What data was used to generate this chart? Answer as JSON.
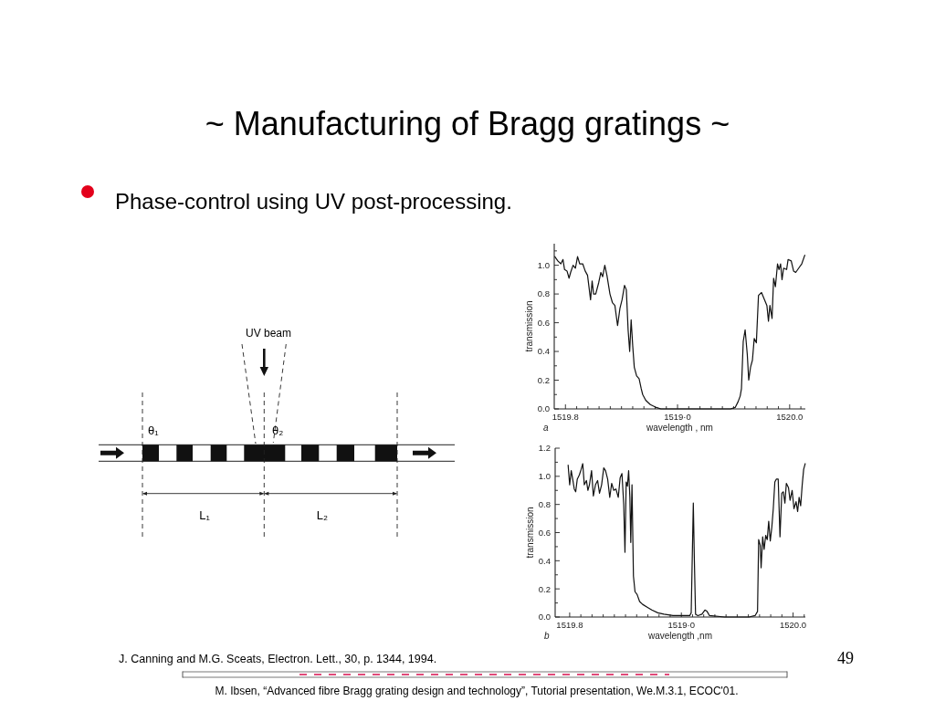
{
  "chart_data": [
    {
      "type": "other",
      "title": "~ Manufacturing of Bragg gratings ~",
      "subtitle": "Phase-control using UV post-processing.",
      "annotations": [
        "UV beam",
        "θ₁",
        "θ₂",
        "L₁",
        "L₂",
        "J. Canning and M.G. Sceats, Electron. Lett., 30, p. 1344, 1994.",
        "49",
        "M. Ibsen, “Advanced fibre Bragg grating design and technology”, Tutorial presentation, We.M.3.1, ECOC'01."
      ]
    },
    {
      "type": "line",
      "color": "#111111",
      "xlabel": "wavelength , nm",
      "ylabel": "transmission",
      "annotations": [
        "a"
      ],
      "xlim": [
        1519.79,
        1520.014
      ],
      "ylim": [
        0,
        1.15
      ],
      "xticks": [
        {
          "value": 1519.8,
          "label": "1519.8"
        },
        {
          "value": 1519.81,
          "label": null
        },
        {
          "value": 1519.82,
          "label": null
        },
        {
          "value": 1519.83,
          "label": null
        },
        {
          "value": 1519.84,
          "label": null
        },
        {
          "value": 1519.85,
          "label": null
        },
        {
          "value": 1519.86,
          "label": null
        },
        {
          "value": 1519.87,
          "label": null
        },
        {
          "value": 1519.88,
          "label": null
        },
        {
          "value": 1519.89,
          "label": null
        },
        {
          "value": 1519.9,
          "label": "1519·0"
        },
        {
          "value": 1519.91,
          "label": null
        },
        {
          "value": 1519.92,
          "label": null
        },
        {
          "value": 1519.93,
          "label": null
        },
        {
          "value": 1519.94,
          "label": null
        },
        {
          "value": 1519.95,
          "label": null
        },
        {
          "value": 1519.96,
          "label": null
        },
        {
          "value": 1519.97,
          "label": null
        },
        {
          "value": 1519.98,
          "label": null
        },
        {
          "value": 1519.99,
          "label": null
        },
        {
          "value": 1520.0,
          "label": "1520.0"
        },
        {
          "value": 1520.01,
          "label": null
        }
      ],
      "yticks": [
        {
          "value": 0,
          "label": "0.0"
        },
        {
          "value": 0.1,
          "label": null
        },
        {
          "value": 0.2,
          "label": "0.2"
        },
        {
          "value": 0.3,
          "label": null
        },
        {
          "value": 0.4,
          "label": "0.4"
        },
        {
          "value": 0.5,
          "label": null
        },
        {
          "value": 0.6,
          "label": "0.6"
        },
        {
          "value": 0.7,
          "label": null
        },
        {
          "value": 0.8,
          "label": "0.8"
        },
        {
          "value": 0.9,
          "label": null
        },
        {
          "value": 1.0,
          "label": "1.0"
        },
        {
          "value": 1.1,
          "label": null
        }
      ],
      "x": [
        1519.7905,
        1519.7932,
        1519.7959,
        1519.7978,
        1519.7992,
        1519.8014,
        1519.8032,
        1519.8046,
        1519.8068,
        1519.8089,
        1519.8108,
        1519.8127,
        1519.8154,
        1519.8176,
        1519.8197,
        1519.8224,
        1519.8238,
        1519.8251,
        1519.827,
        1519.8297,
        1519.8316,
        1519.8332,
        1519.8351,
        1519.837,
        1519.8397,
        1519.8419,
        1519.8441,
        1519.8465,
        1519.8486,
        1519.8505,
        1519.8527,
        1519.8543,
        1519.8559,
        1519.8573,
        1519.8586,
        1519.86,
        1519.8614,
        1519.8635,
        1519.8657,
        1519.8676,
        1519.8689,
        1519.8716,
        1519.8757,
        1519.8811,
        1519.8851,
        1519.9473,
        1519.9514,
        1519.954,
        1519.9559,
        1519.957,
        1519.9586,
        1519.9603,
        1519.9622,
        1519.9635,
        1519.9651,
        1519.9668,
        1519.9684,
        1519.9703,
        1519.9722,
        1519.9749,
        1519.977,
        1519.9797,
        1519.9811,
        1519.9824,
        1519.9843,
        1519.9857,
        1519.9873,
        1519.9892,
        1519.9905,
        1519.9919,
        1519.9932,
        1519.9946,
        1519.9973,
        1519.9986,
        1520.0014,
        1520.0035,
        1520.0054,
        1520.0081,
        1520.0108,
        1520.0135
      ],
      "values": [
        1.06,
        1.03,
        1.01,
        1.04,
        0.97,
        0.96,
        0.91,
        0.95,
        1.0,
        0.98,
        1.06,
        1.01,
        1.01,
        0.96,
        0.93,
        0.76,
        0.89,
        0.8,
        0.8,
        0.88,
        0.95,
        0.92,
        1.0,
        0.93,
        0.8,
        0.74,
        0.72,
        0.58,
        0.7,
        0.76,
        0.86,
        0.83,
        0.55,
        0.4,
        0.62,
        0.44,
        0.29,
        0.23,
        0.21,
        0.14,
        0.1,
        0.06,
        0.03,
        0.01,
        0,
        0,
        0.01,
        0.05,
        0.09,
        0.14,
        0.47,
        0.55,
        0.38,
        0.2,
        0.29,
        0.34,
        0.49,
        0.46,
        0.79,
        0.81,
        0.77,
        0.72,
        0.61,
        0.72,
        0.63,
        0.91,
        0.85,
        1.01,
        0.97,
        1.01,
        0.9,
        0.98,
        0.97,
        1.04,
        1.03,
        0.96,
        0.95,
        0.98,
        1.01,
        1.07
      ]
    },
    {
      "type": "line",
      "color": "#111111",
      "xlabel": "wavelength ,nm",
      "ylabel": "transmission",
      "annotations": [
        "b"
      ],
      "xlim": [
        1519.787,
        1520.011
      ],
      "ylim": [
        0,
        1.2
      ],
      "xticks": [
        {
          "value": 1519.8,
          "label": "1519.8"
        },
        {
          "value": 1519.81,
          "label": null
        },
        {
          "value": 1519.82,
          "label": null
        },
        {
          "value": 1519.83,
          "label": null
        },
        {
          "value": 1519.84,
          "label": null
        },
        {
          "value": 1519.85,
          "label": null
        },
        {
          "value": 1519.86,
          "label": null
        },
        {
          "value": 1519.87,
          "label": null
        },
        {
          "value": 1519.88,
          "label": null
        },
        {
          "value": 1519.89,
          "label": null
        },
        {
          "value": 1519.9,
          "label": "1519·0"
        },
        {
          "value": 1519.91,
          "label": null
        },
        {
          "value": 1519.92,
          "label": null
        },
        {
          "value": 1519.93,
          "label": null
        },
        {
          "value": 1519.94,
          "label": null
        },
        {
          "value": 1519.95,
          "label": null
        },
        {
          "value": 1519.96,
          "label": null
        },
        {
          "value": 1519.97,
          "label": null
        },
        {
          "value": 1519.98,
          "label": null
        },
        {
          "value": 1519.99,
          "label": null
        },
        {
          "value": 1520.0,
          "label": "1520.0"
        },
        {
          "value": 1520.01,
          "label": null
        }
      ],
      "yticks": [
        {
          "value": 0,
          "label": "0.0"
        },
        {
          "value": 0.1,
          "label": null
        },
        {
          "value": 0.2,
          "label": "0.2"
        },
        {
          "value": 0.3,
          "label": null
        },
        {
          "value": 0.4,
          "label": "0.4"
        },
        {
          "value": 0.5,
          "label": null
        },
        {
          "value": 0.6,
          "label": "0.6"
        },
        {
          "value": 0.7,
          "label": null
        },
        {
          "value": 0.8,
          "label": "0.8"
        },
        {
          "value": 0.9,
          "label": null
        },
        {
          "value": 1.0,
          "label": "1.0"
        },
        {
          "value": 1.1,
          "label": null
        },
        {
          "value": 1.2,
          "label": "1.2"
        }
      ],
      "x": [
        1519.7986,
        1519.8,
        1519.8014,
        1519.8027,
        1519.8041,
        1519.8054,
        1519.8068,
        1519.8087,
        1519.8103,
        1519.8117,
        1519.8131,
        1519.815,
        1519.8163,
        1519.8177,
        1519.8196,
        1519.8212,
        1519.8231,
        1519.825,
        1519.8267,
        1519.8286,
        1519.8305,
        1519.8321,
        1519.834,
        1519.8359,
        1519.8376,
        1519.8395,
        1519.8414,
        1519.8435,
        1519.8452,
        1519.8468,
        1519.8484,
        1519.8495,
        1519.8506,
        1519.8517,
        1519.8528,
        1519.8539,
        1519.8547,
        1519.8558,
        1519.8571,
        1519.8585,
        1519.8604,
        1519.8626,
        1519.8653,
        1519.8694,
        1519.8735,
        1519.8789,
        1519.8844,
        1519.8925,
        1519.9007,
        1519.9075,
        1519.9088,
        1519.9107,
        1519.9116,
        1519.9127,
        1519.9148,
        1519.9184,
        1519.9211,
        1519.923,
        1519.9252,
        1519.9388,
        1519.9605,
        1519.966,
        1519.9682,
        1519.9692,
        1519.9706,
        1519.9714,
        1519.9728,
        1519.9741,
        1519.9755,
        1519.9769,
        1519.9782,
        1519.9796,
        1519.981,
        1519.9823,
        1519.9837,
        1519.985,
        1519.9867,
        1519.9883,
        1519.9899,
        1519.9913,
        1519.9927,
        1519.994,
        1519.9959,
        1519.9973,
        1519.9992,
        1520.0008,
        1520.0027,
        1520.0041,
        1520.0054,
        1520.0068,
        1520.0082,
        1520.0095,
        1520.0109
      ],
      "values": [
        1.08,
        0.94,
        1.04,
        0.98,
        0.91,
        0.89,
        0.98,
        1.01,
        1.05,
        1.09,
        0.94,
        0.97,
        0.9,
        0.94,
        1.04,
        0.86,
        0.94,
        0.97,
        0.88,
        0.94,
        1.06,
        1.04,
        0.98,
        0.85,
        0.95,
        0.9,
        0.91,
        0.85,
        0.99,
        1.02,
        0.8,
        0.46,
        0.96,
        0.93,
        1.04,
        0.85,
        0.53,
        0.94,
        0.29,
        0.18,
        0.16,
        0.11,
        0.09,
        0.07,
        0.05,
        0.03,
        0.02,
        0.01,
        0.01,
        0.01,
        0.03,
        0.81,
        0.42,
        0.02,
        0.01,
        0.02,
        0.05,
        0.04,
        0.01,
        0,
        0,
        0.01,
        0.04,
        0.55,
        0.51,
        0.35,
        0.57,
        0.48,
        0.58,
        0.55,
        0.68,
        0.54,
        0.64,
        0.77,
        0.96,
        0.98,
        0.98,
        0.57,
        0.88,
        0.89,
        0.81,
        0.95,
        0.92,
        0.83,
        0.9,
        0.77,
        0.82,
        0.75,
        0.85,
        0.79,
        0.94,
        1.05,
        1.09
      ]
    }
  ]
}
